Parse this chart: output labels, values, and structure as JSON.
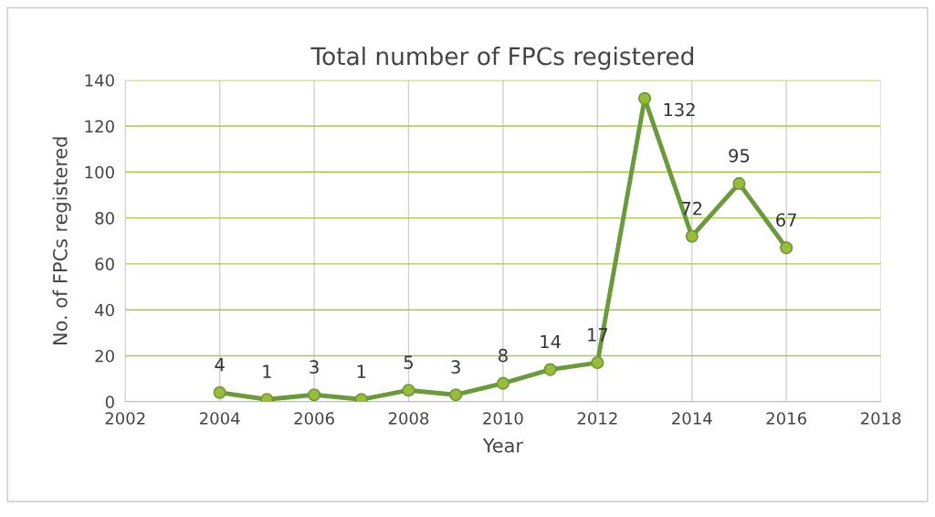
{
  "chart_data": {
    "type": "line",
    "title": "Total number of FPCs registered",
    "xlabel": "Year",
    "ylabel": "No. of FPCs registered",
    "x": [
      2004,
      2005,
      2006,
      2007,
      2008,
      2009,
      2010,
      2011,
      2012,
      2013,
      2014,
      2015,
      2016
    ],
    "series": [
      {
        "color": "#6a9a3a",
        "values": [
          4,
          1,
          3,
          1,
          5,
          3,
          8,
          14,
          17,
          132,
          72,
          95,
          67
        ]
      }
    ],
    "xlim": [
      2002,
      2018
    ],
    "xticks": [
      2002,
      2004,
      2006,
      2008,
      2010,
      2012,
      2014,
      2016,
      2018
    ],
    "ylim": [
      0,
      140
    ],
    "yticks": [
      0,
      20,
      40,
      60,
      80,
      100,
      120,
      140
    ],
    "grid": true,
    "marker": "circle",
    "line_style": "solid",
    "data_labels": true
  }
}
